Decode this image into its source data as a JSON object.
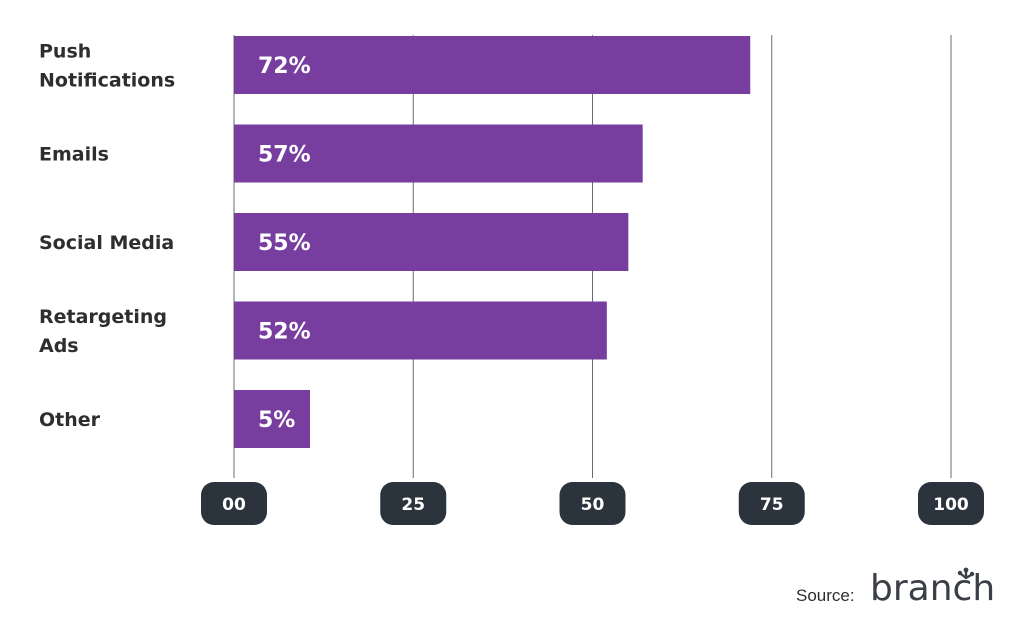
{
  "chart_data": {
    "type": "bar",
    "orientation": "horizontal",
    "categories": [
      "Push Notifications",
      "Emails",
      "Social Media",
      "Retargeting Ads",
      "Other"
    ],
    "values": [
      72,
      57,
      55,
      52,
      5
    ],
    "value_labels": [
      "72%",
      "57%",
      "55%",
      "52%",
      "5%"
    ],
    "xticks": [
      "00",
      "25",
      "50",
      "75",
      "100"
    ],
    "xlim": [
      0,
      100
    ],
    "bar_color": "#773ea0",
    "tick_badge_color": "#2b343c",
    "grid": true
  },
  "source": {
    "label": "Source:",
    "logo_icon": "branch-logo-icon",
    "logo_text": "branch"
  }
}
